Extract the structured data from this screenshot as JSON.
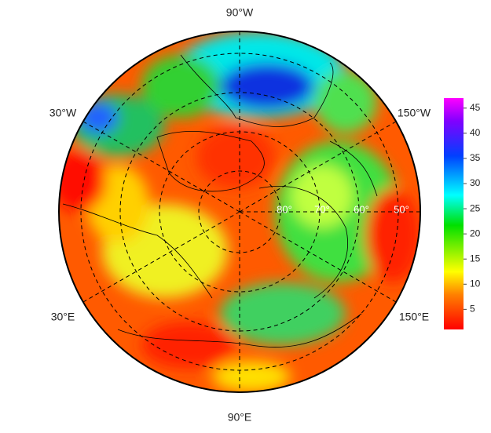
{
  "map": {
    "longitude_labels": {
      "top": "90°W",
      "upper_left": "30°W",
      "upper_right": "150°W",
      "lower_left": "30°E",
      "lower_right": "150°E",
      "bottom": "90°E"
    },
    "latitude_labels": [
      "80°",
      "70°",
      "60°",
      "50°"
    ],
    "colorbar": {
      "lim": [
        1,
        47
      ],
      "ticks": [
        5,
        10,
        15,
        20,
        25,
        30,
        35,
        40,
        45
      ]
    }
  }
}
